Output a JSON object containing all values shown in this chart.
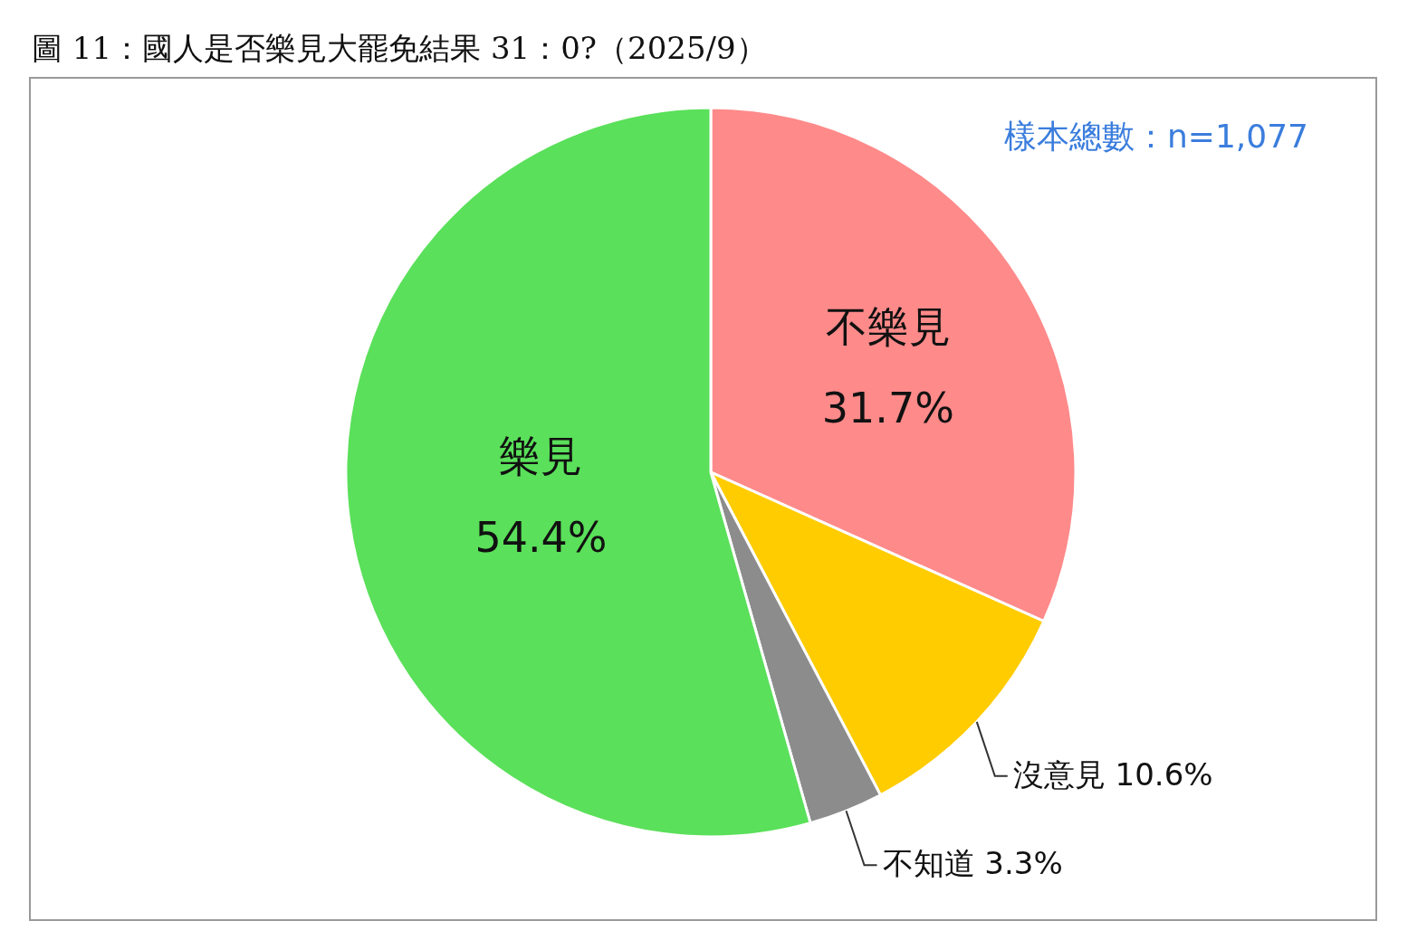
{
  "chart_data": {
    "type": "pie",
    "title": "圖 11：國人是否樂見大罷免結果 31：0?（2025/9）",
    "categories": [
      "不樂見",
      "沒意見",
      "不知道",
      "樂見"
    ],
    "values": [
      31.7,
      10.6,
      3.3,
      54.4
    ],
    "colors": [
      "#ff8a8a",
      "#ffcc00",
      "#8c8c8c",
      "#5ae05a"
    ],
    "value_labels": [
      "31.7%",
      "10.6%",
      "3.3%",
      "54.4%"
    ],
    "annotations": [
      "樣本總數：n=1,077"
    ]
  }
}
